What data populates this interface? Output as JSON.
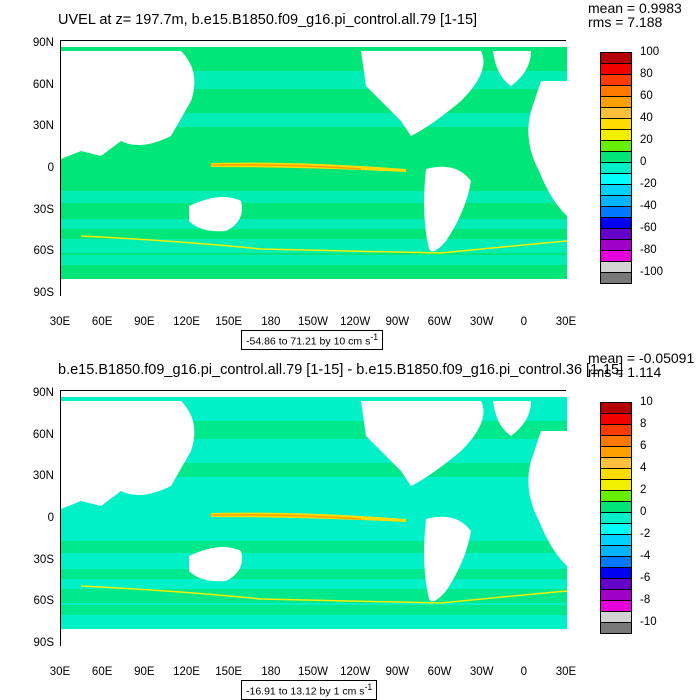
{
  "panels": [
    {
      "id": "top",
      "title": "UVEL at z= 197.7m, b.e15.B1850.f09_g16.pi_control.all.79 [1-15]",
      "mean": "mean = 0.9983",
      "rms": "rms = 7.188",
      "range_label": "-54.86 to 71.21 by 10 cm s",
      "range_sup": "-1",
      "colorbar_labels": [
        "100",
        "80",
        "60",
        "40",
        "20",
        "0",
        "-20",
        "-40",
        "-60",
        "-80",
        "-100"
      ]
    },
    {
      "id": "bottom",
      "title": "b.e15.B1850.f09_g16.pi_control.all.79 [1-15] - b.e15.B1850.f09_g16.pi_control.36 [1-15]",
      "mean": "mean = -0.05091",
      "rms": "rms = 1.114",
      "range_label": "-16.91 to 13.12 by 1 cm s",
      "range_sup": "-1",
      "colorbar_labels": [
        "10",
        "8",
        "6",
        "4",
        "2",
        "0",
        "-2",
        "-4",
        "-6",
        "-8",
        "-10"
      ]
    }
  ],
  "lat_labels": [
    "90N",
    "60N",
    "30N",
    "0",
    "30S",
    "60S",
    "90S"
  ],
  "lon_labels": [
    "30E",
    "60E",
    "90E",
    "120E",
    "150E",
    "180",
    "150W",
    "120W",
    "90W",
    "60W",
    "30W",
    "0",
    "30E"
  ],
  "colorbar_colors": [
    "#b40000",
    "#f00000",
    "#ff3c00",
    "#ff7800",
    "#ffa000",
    "#ffbe3c",
    "#ffdc00",
    "#f0f000",
    "#64f000",
    "#00e678",
    "#00f0c8",
    "#00ffff",
    "#00d2ff",
    "#00b4ff",
    "#0078ff",
    "#0000f0",
    "#6400c8",
    "#a000c8",
    "#e600dc",
    "#d2d2d2",
    "#787878"
  ]
}
